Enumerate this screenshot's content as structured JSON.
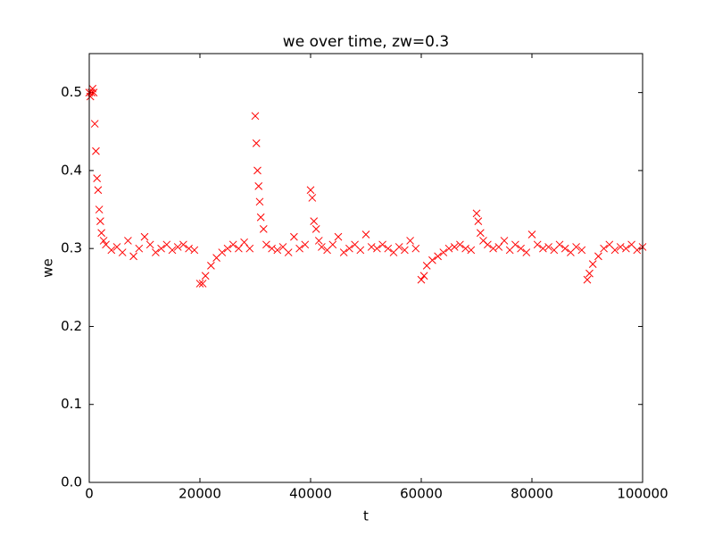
{
  "chart_data": {
    "type": "scatter",
    "title": "we over time, zw=0.3",
    "xlabel": "t",
    "ylabel": "we",
    "marker": "x",
    "color": "#ff0000",
    "x": [
      0,
      200,
      400,
      600,
      800,
      1000,
      1200,
      1400,
      1600,
      1800,
      2000,
      2200,
      2600,
      3000,
      4000,
      5000,
      6000,
      7000,
      8000,
      9000,
      10000,
      11000,
      12000,
      13000,
      14000,
      15000,
      16000,
      17000,
      18000,
      19000,
      20000,
      20500,
      21000,
      22000,
      23000,
      24000,
      25000,
      26000,
      27000,
      28000,
      29000,
      30000,
      30200,
      30400,
      30600,
      30800,
      31000,
      31500,
      32000,
      33000,
      34000,
      35000,
      36000,
      37000,
      38000,
      39000,
      40000,
      40300,
      40600,
      41000,
      41500,
      42000,
      43000,
      44000,
      45000,
      46000,
      47000,
      48000,
      49000,
      50000,
      51000,
      52000,
      53000,
      54000,
      55000,
      56000,
      57000,
      58000,
      59000,
      60000,
      60500,
      61000,
      62000,
      63000,
      64000,
      65000,
      66000,
      67000,
      68000,
      69000,
      70000,
      70300,
      70700,
      71200,
      72000,
      73000,
      74000,
      75000,
      76000,
      77000,
      78000,
      79000,
      80000,
      81000,
      82000,
      83000,
      84000,
      85000,
      86000,
      87000,
      88000,
      89000,
      90000,
      90400,
      91000,
      92000,
      93000,
      94000,
      95000,
      96000,
      97000,
      98000,
      99000,
      100000
    ],
    "values": [
      0.5,
      0.495,
      0.5,
      0.505,
      0.5,
      0.46,
      0.425,
      0.39,
      0.375,
      0.35,
      0.335,
      0.32,
      0.31,
      0.305,
      0.298,
      0.302,
      0.295,
      0.31,
      0.29,
      0.3,
      0.315,
      0.305,
      0.295,
      0.3,
      0.305,
      0.298,
      0.302,
      0.305,
      0.3,
      0.298,
      0.255,
      0.255,
      0.265,
      0.278,
      0.288,
      0.295,
      0.3,
      0.305,
      0.3,
      0.308,
      0.3,
      0.47,
      0.435,
      0.4,
      0.38,
      0.36,
      0.34,
      0.325,
      0.305,
      0.3,
      0.298,
      0.302,
      0.295,
      0.315,
      0.3,
      0.305,
      0.375,
      0.365,
      0.335,
      0.325,
      0.31,
      0.302,
      0.298,
      0.305,
      0.315,
      0.295,
      0.3,
      0.305,
      0.298,
      0.318,
      0.302,
      0.3,
      0.305,
      0.3,
      0.295,
      0.302,
      0.298,
      0.31,
      0.3,
      0.26,
      0.265,
      0.278,
      0.285,
      0.29,
      0.295,
      0.3,
      0.302,
      0.305,
      0.3,
      0.298,
      0.345,
      0.335,
      0.32,
      0.31,
      0.305,
      0.3,
      0.302,
      0.31,
      0.298,
      0.305,
      0.3,
      0.295,
      0.318,
      0.305,
      0.3,
      0.302,
      0.298,
      0.305,
      0.3,
      0.295,
      0.302,
      0.298,
      0.26,
      0.268,
      0.28,
      0.29,
      0.3,
      0.305,
      0.298,
      0.302,
      0.3,
      0.305,
      0.298,
      0.302
    ],
    "xlim": [
      0,
      100000
    ],
    "xticks": [
      0,
      20000,
      40000,
      60000,
      80000,
      100000
    ],
    "ylim": [
      0,
      0.55
    ],
    "yticks": [
      {
        "value": 0,
        "label": "0.0"
      },
      0.1,
      0.2,
      0.3,
      0.4,
      0.5
    ]
  }
}
